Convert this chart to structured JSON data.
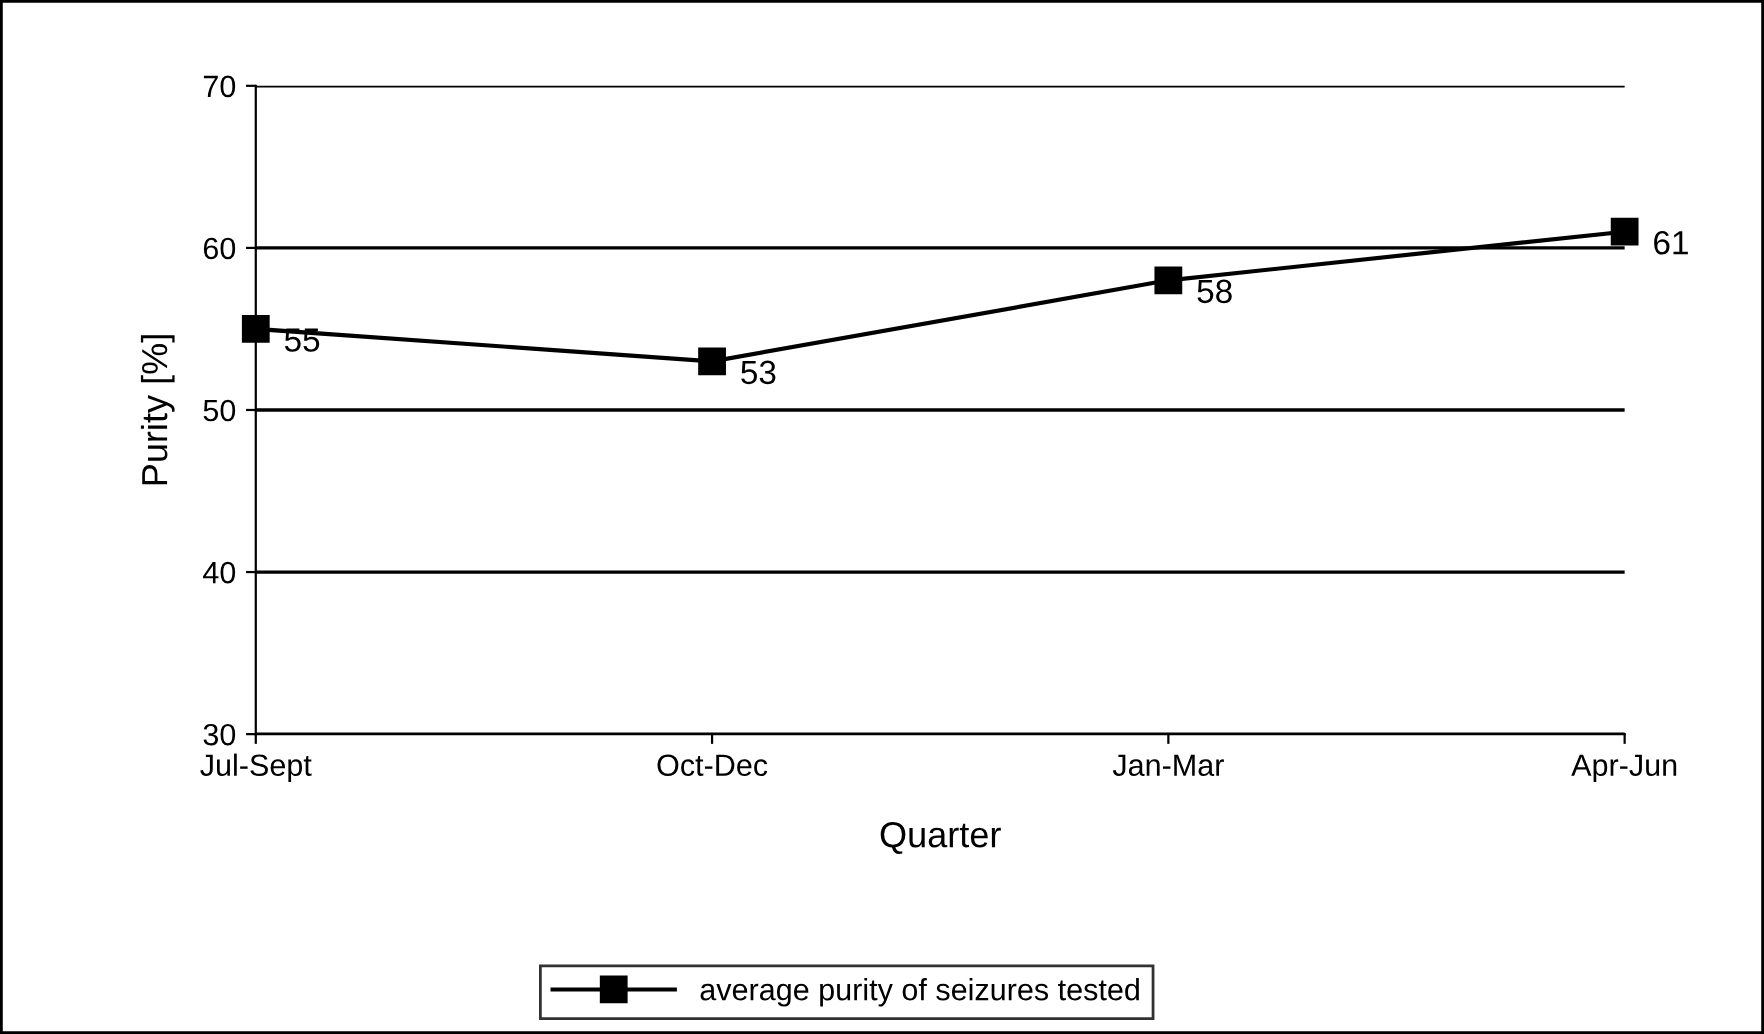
{
  "chart_data": {
    "type": "line",
    "xlabel": "Quarter",
    "ylabel": "Purity [%]",
    "categories": [
      "Jul-Sept",
      "Oct-Dec",
      "Jan-Mar",
      "Apr-Jun"
    ],
    "series": [
      {
        "name": "average purity of seizures tested",
        "color": "#000000",
        "values": [
          55,
          53,
          58,
          61
        ]
      }
    ],
    "ylim": [
      30,
      70
    ],
    "yticks": [
      30,
      40,
      50,
      60,
      70
    ],
    "grid": "y",
    "legend": "bottom",
    "marker": "square",
    "line_style": "solid",
    "data_labels": true
  }
}
